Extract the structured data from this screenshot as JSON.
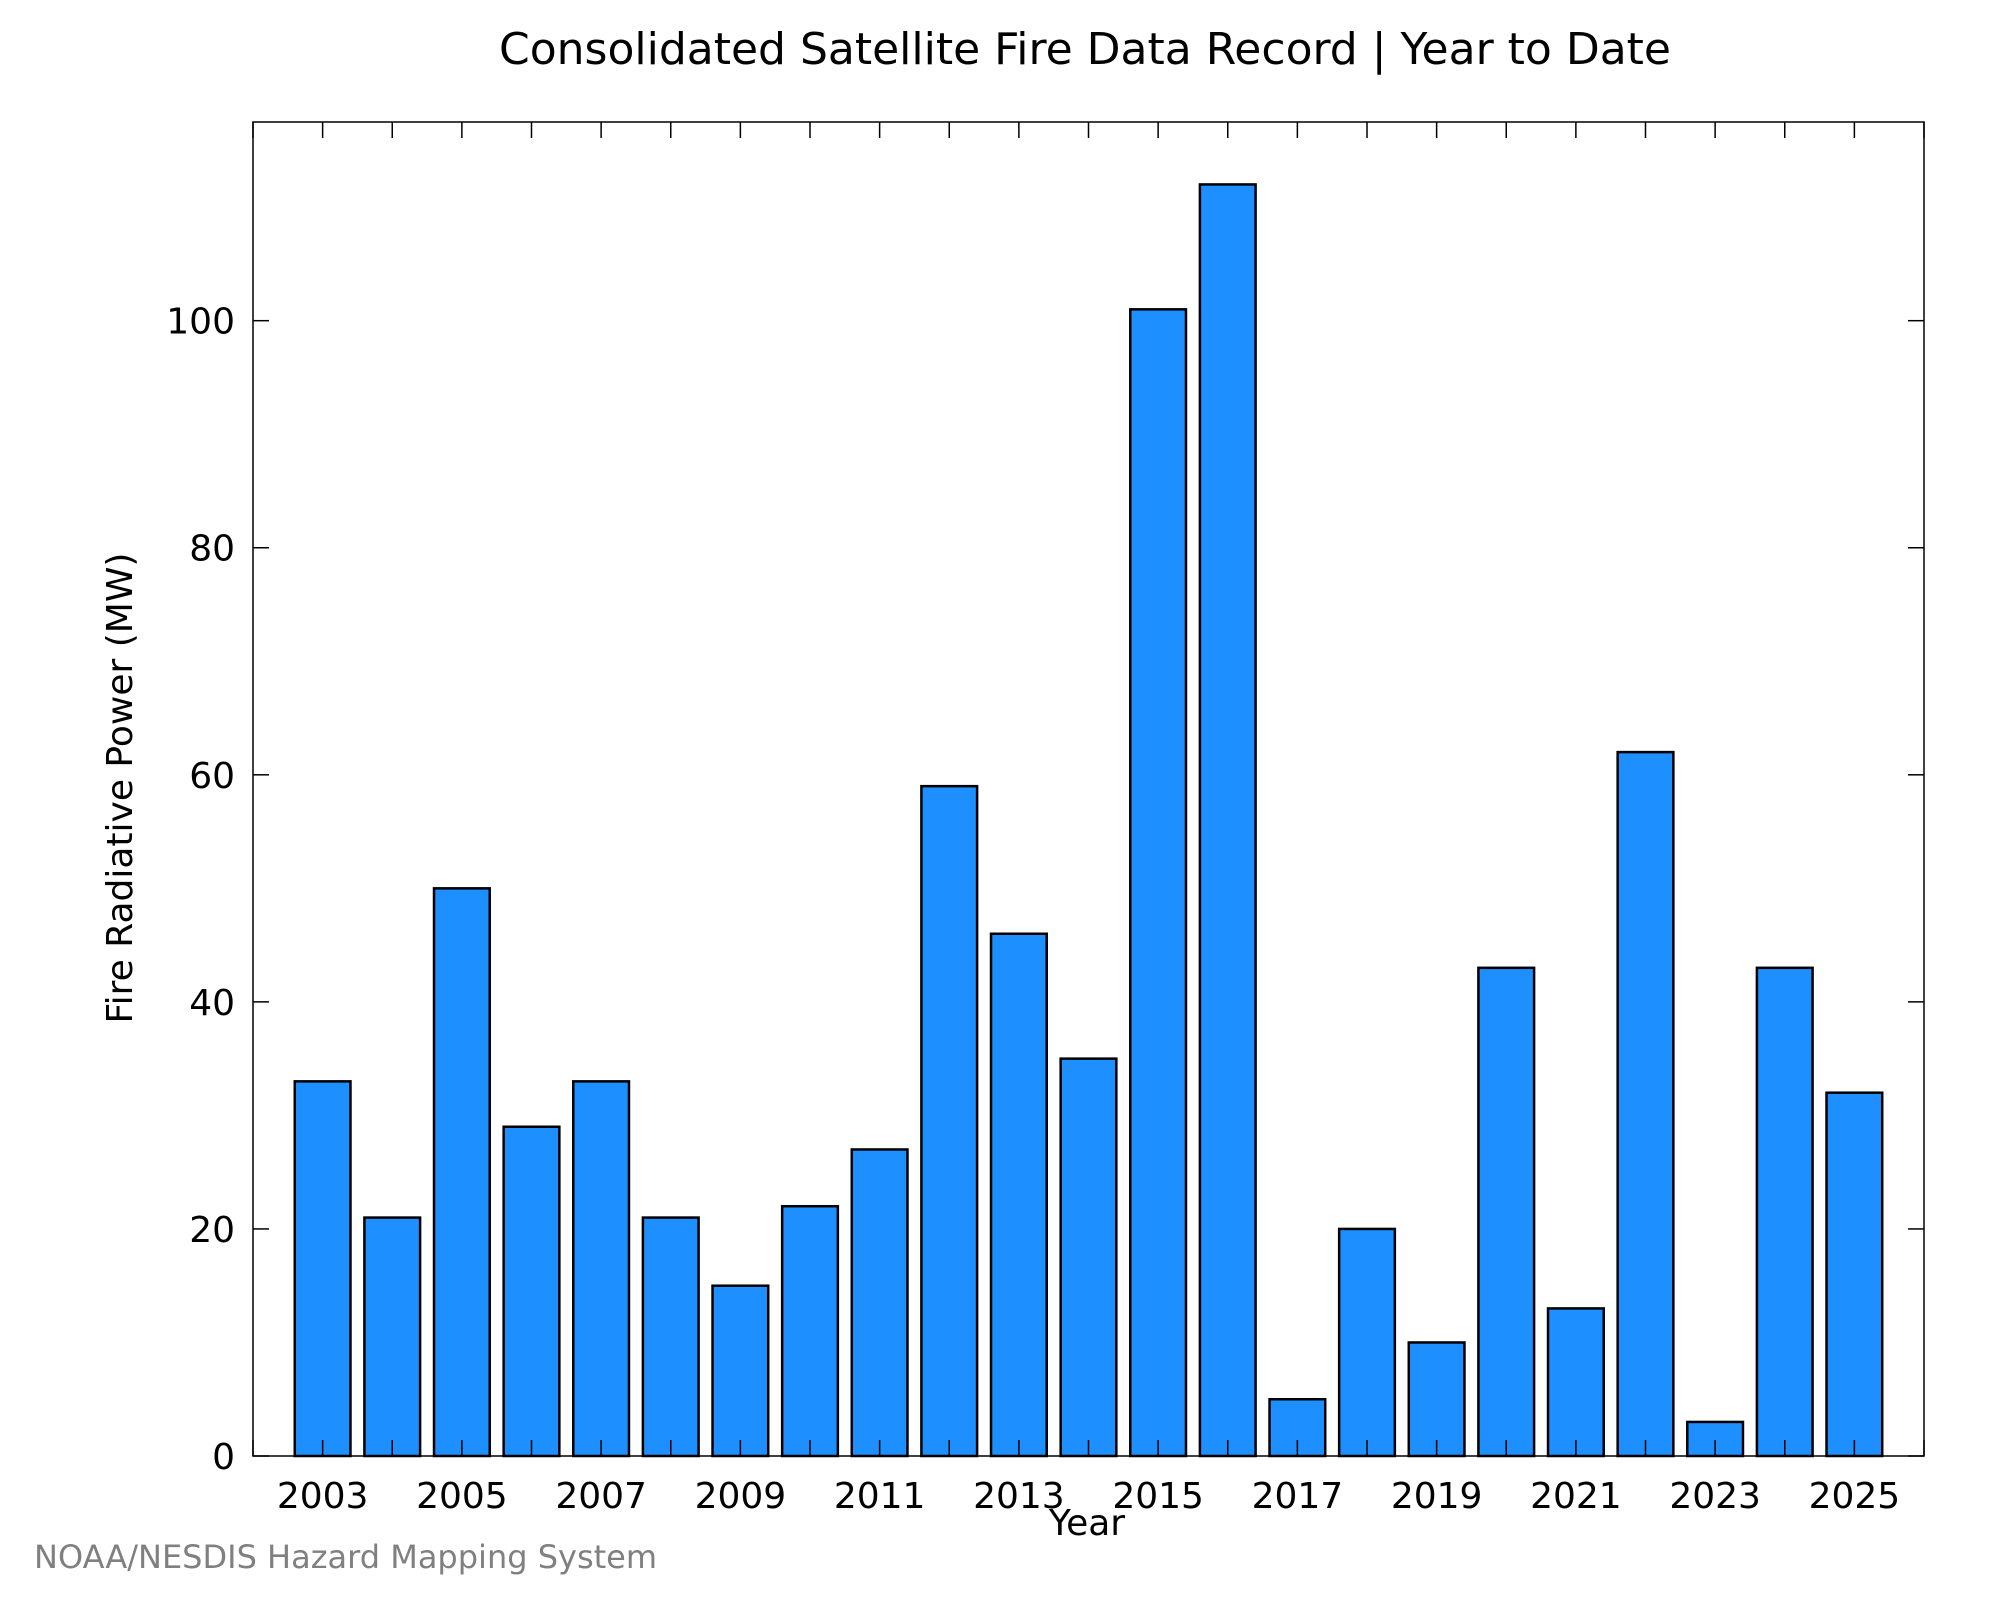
{
  "chart_data": {
    "type": "bar",
    "title": "Consolidated Satellite Fire Data Record | Year to Date",
    "xlabel": "Year",
    "ylabel": "Fire Radiative Power (MW)",
    "categories": [
      2003,
      2004,
      2005,
      2006,
      2007,
      2008,
      2009,
      2010,
      2011,
      2012,
      2013,
      2014,
      2015,
      2016,
      2017,
      2018,
      2019,
      2020,
      2021,
      2022,
      2023,
      2024,
      2025
    ],
    "values": [
      33,
      21,
      50,
      29,
      33,
      21,
      15,
      22,
      27,
      59,
      46,
      35,
      101,
      112,
      5,
      20,
      10,
      43,
      13,
      62,
      3,
      43,
      32
    ],
    "x_tick_labels": [
      "2003",
      "2005",
      "2007",
      "2009",
      "2011",
      "2013",
      "2015",
      "2017",
      "2019",
      "2021",
      "2023",
      "2025"
    ],
    "y_ticks": [
      0,
      20,
      40,
      60,
      80,
      100
    ],
    "ylim": [
      0,
      117.5
    ],
    "xlim": [
      2002.0,
      2026.0
    ],
    "grid": false,
    "legend": "none",
    "bar_color": "#1e8fff",
    "bar_edge_color": "#000000"
  },
  "credit": "NOAA/NESDIS Hazard Mapping System"
}
